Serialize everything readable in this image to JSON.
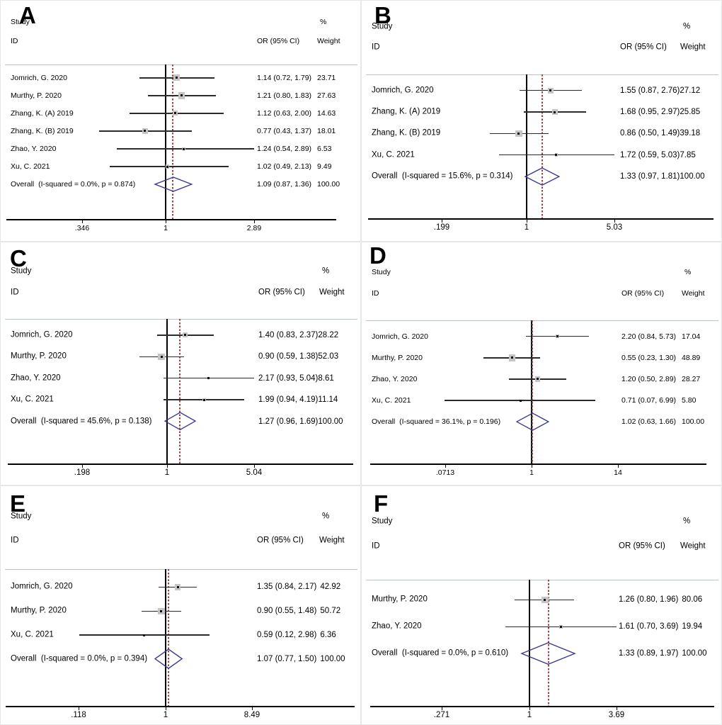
{
  "figure_colors": {
    "diamond_outline": "#3a3a8f",
    "overall_dashed_line": "#9e4242",
    "marker_square_fill": "#c5c5c5",
    "marker_dot": "#111111",
    "ci_line": "#2b2b2b",
    "axis_line": "#000000",
    "header_rule": "#bcc4c4",
    "panel_border": "#e4e8e8",
    "text": "#000000"
  },
  "chart_data": [
    {
      "type": "scatter",
      "subtype": "forest_plot",
      "panel": "A",
      "effect_measure": "OR",
      "x_scale": "log",
      "x_ticks": [
        0.346,
        1,
        2.89
      ],
      "x_tick_labels": [
        ".346",
        "1",
        "2.89"
      ],
      "null_line": 1,
      "columns": {
        "study_line1": "Study",
        "study_line2": "ID",
        "or_header": "OR (95% CI)",
        "weight_line1": "%",
        "weight_line2": "Weight"
      },
      "studies": [
        {
          "id": "Jomrich, G. 2020",
          "or": 1.14,
          "ci": [
            0.72,
            1.79
          ],
          "weight_pct": 23.71,
          "or_ci_text": "1.14 (0.72, 1.79)",
          "weight_text": "23.71"
        },
        {
          "id": "Murthy, P. 2020",
          "or": 1.21,
          "ci": [
            0.8,
            1.83
          ],
          "weight_pct": 27.63,
          "or_ci_text": "1.21 (0.80, 1.83)",
          "weight_text": "27.63"
        },
        {
          "id": "Zhang, K. (A) 2019",
          "or": 1.12,
          "ci": [
            0.63,
            2.0
          ],
          "weight_pct": 14.63,
          "or_ci_text": "1.12 (0.63, 2.00)",
          "weight_text": "14.63"
        },
        {
          "id": "Zhang, K. (B) 2019",
          "or": 0.77,
          "ci": [
            0.43,
            1.37
          ],
          "weight_pct": 18.01,
          "or_ci_text": "0.77 (0.43, 1.37)",
          "weight_text": "18.01"
        },
        {
          "id": "Zhao, Y. 2020",
          "or": 1.24,
          "ci": [
            0.54,
            2.89
          ],
          "weight_pct": 6.53,
          "or_ci_text": "1.24 (0.54, 2.89)",
          "weight_text": "6.53"
        },
        {
          "id": "Xu, C. 2021",
          "or": 1.02,
          "ci": [
            0.49,
            2.13
          ],
          "weight_pct": 9.49,
          "or_ci_text": "1.02 (0.49, 2.13)",
          "weight_text": "9.49"
        }
      ],
      "overall": {
        "label": "Overall  (I-squared = 0.0%, p = 0.874)",
        "or": 1.09,
        "ci": [
          0.87,
          1.36
        ],
        "weight_pct": 100.0,
        "or_ci_text": "1.09 (0.87, 1.36)",
        "weight_text": "100.00"
      }
    },
    {
      "type": "scatter",
      "subtype": "forest_plot",
      "panel": "B",
      "effect_measure": "OR",
      "x_scale": "log",
      "x_ticks": [
        0.199,
        1,
        5.03
      ],
      "x_tick_labels": [
        ".199",
        "1",
        "5.03"
      ],
      "null_line": 1,
      "columns": {
        "study_line1": "Study",
        "study_line2": "ID",
        "or_header": "OR (95% CI)",
        "weight_line1": "%",
        "weight_line2": "Weight"
      },
      "studies": [
        {
          "id": "Jomrich, G. 2020",
          "or": 1.55,
          "ci": [
            0.87,
            2.76
          ],
          "weight_pct": 27.12,
          "or_ci_text": "1.55 (0.87, 2.76)",
          "weight_text": "27.12"
        },
        {
          "id": "Zhang, K. (A) 2019",
          "or": 1.68,
          "ci": [
            0.95,
            2.97
          ],
          "weight_pct": 25.85,
          "or_ci_text": "1.68 (0.95, 2.97)",
          "weight_text": "25.85"
        },
        {
          "id": "Zhang, K. (B) 2019",
          "or": 0.86,
          "ci": [
            0.5,
            1.49
          ],
          "weight_pct": 39.18,
          "or_ci_text": "0.86 (0.50, 1.49)",
          "weight_text": "39.18"
        },
        {
          "id": "Xu, C. 2021",
          "or": 1.72,
          "ci": [
            0.59,
            5.03
          ],
          "weight_pct": 7.85,
          "or_ci_text": "1.72 (0.59, 5.03)",
          "weight_text": "7.85"
        }
      ],
      "overall": {
        "label": "Overall  (I-squared = 15.6%, p = 0.314)",
        "or": 1.33,
        "ci": [
          0.97,
          1.81
        ],
        "weight_pct": 100.0,
        "or_ci_text": "1.33 (0.97, 1.81)",
        "weight_text": "100.00"
      }
    },
    {
      "type": "scatter",
      "subtype": "forest_plot",
      "panel": "C",
      "effect_measure": "OR",
      "x_scale": "log",
      "x_ticks": [
        0.198,
        1,
        5.04
      ],
      "x_tick_labels": [
        ".198",
        "1",
        "5.04"
      ],
      "null_line": 1,
      "columns": {
        "study_line1": "Study",
        "study_line2": "ID",
        "or_header": "OR (95% CI)",
        "weight_line1": "%",
        "weight_line2": "Weight"
      },
      "studies": [
        {
          "id": "Jomrich, G. 2020",
          "or": 1.4,
          "ci": [
            0.83,
            2.37
          ],
          "weight_pct": 28.22,
          "or_ci_text": "1.40 (0.83, 2.37)",
          "weight_text": "28.22"
        },
        {
          "id": "Murthy, P. 2020",
          "or": 0.9,
          "ci": [
            0.59,
            1.38
          ],
          "weight_pct": 52.03,
          "or_ci_text": "0.90 (0.59, 1.38)",
          "weight_text": "52.03"
        },
        {
          "id": "Zhao, Y. 2020",
          "or": 2.17,
          "ci": [
            0.93,
            5.04
          ],
          "weight_pct": 8.61,
          "or_ci_text": "2.17 (0.93, 5.04)",
          "weight_text": "8.61"
        },
        {
          "id": "Xu, C. 2021",
          "or": 1.99,
          "ci": [
            0.94,
            4.19
          ],
          "weight_pct": 11.14,
          "or_ci_text": "1.99 (0.94, 4.19)",
          "weight_text": "11.14"
        }
      ],
      "overall": {
        "label": "Overall  (I-squared = 45.6%, p = 0.138)",
        "or": 1.27,
        "ci": [
          0.96,
          1.69
        ],
        "weight_pct": 100.0,
        "or_ci_text": "1.27 (0.96, 1.69)",
        "weight_text": "100.00"
      }
    },
    {
      "type": "scatter",
      "subtype": "forest_plot",
      "panel": "D",
      "effect_measure": "OR",
      "x_scale": "log",
      "x_ticks": [
        0.0713,
        1,
        14
      ],
      "x_tick_labels": [
        ".0713",
        "1",
        "14"
      ],
      "null_line": 1,
      "columns": {
        "study_line1": "Study",
        "study_line2": "ID",
        "or_header": "OR (95% CI)",
        "weight_line1": "%",
        "weight_line2": "Weight"
      },
      "studies": [
        {
          "id": "Jomrich, G. 2020",
          "or": 2.2,
          "ci": [
            0.84,
            5.73
          ],
          "weight_pct": 17.04,
          "or_ci_text": "2.20 (0.84, 5.73)",
          "weight_text": "17.04"
        },
        {
          "id": "Murthy, P. 2020",
          "or": 0.55,
          "ci": [
            0.23,
            1.3
          ],
          "weight_pct": 48.89,
          "or_ci_text": "0.55 (0.23, 1.30)",
          "weight_text": "48.89"
        },
        {
          "id": "Zhao, Y. 2020",
          "or": 1.2,
          "ci": [
            0.5,
            2.89
          ],
          "weight_pct": 28.27,
          "or_ci_text": "1.20 (0.50, 2.89)",
          "weight_text": "28.27"
        },
        {
          "id": "Xu, C. 2021",
          "or": 0.71,
          "ci": [
            0.07,
            6.99
          ],
          "weight_pct": 5.8,
          "or_ci_text": "0.71 (0.07, 6.99)",
          "weight_text": "5.80"
        }
      ],
      "overall": {
        "label": "Overall  (I-squared = 36.1%, p = 0.196)",
        "or": 1.02,
        "ci": [
          0.63,
          1.66
        ],
        "weight_pct": 100.0,
        "or_ci_text": "1.02 (0.63, 1.66)",
        "weight_text": "100.00"
      }
    },
    {
      "type": "scatter",
      "subtype": "forest_plot",
      "panel": "E",
      "effect_measure": "OR",
      "x_scale": "log",
      "x_ticks": [
        0.118,
        1,
        8.49
      ],
      "x_tick_labels": [
        ".118",
        "1",
        "8.49"
      ],
      "null_line": 1,
      "columns": {
        "study_line1": "Study",
        "study_line2": "ID",
        "or_header": "OR (95% CI)",
        "weight_line1": "%",
        "weight_line2": "Weight"
      },
      "studies": [
        {
          "id": "Jomrich, G. 2020",
          "or": 1.35,
          "ci": [
            0.84,
            2.17
          ],
          "weight_pct": 42.92,
          "or_ci_text": "1.35 (0.84, 2.17)",
          "weight_text": "42.92"
        },
        {
          "id": "Murthy, P. 2020",
          "or": 0.9,
          "ci": [
            0.55,
            1.48
          ],
          "weight_pct": 50.72,
          "or_ci_text": "0.90 (0.55, 1.48)",
          "weight_text": "50.72"
        },
        {
          "id": "Xu, C. 2021",
          "or": 0.59,
          "ci": [
            0.12,
            2.98
          ],
          "weight_pct": 6.36,
          "or_ci_text": "0.59 (0.12, 2.98)",
          "weight_text": "6.36"
        }
      ],
      "overall": {
        "label": "Overall  (I-squared = 0.0%, p = 0.394)",
        "or": 1.07,
        "ci": [
          0.77,
          1.5
        ],
        "weight_pct": 100.0,
        "or_ci_text": "1.07 (0.77, 1.50)",
        "weight_text": "100.00"
      }
    },
    {
      "type": "scatter",
      "subtype": "forest_plot",
      "panel": "F",
      "effect_measure": "OR",
      "x_scale": "log",
      "x_ticks": [
        0.271,
        1,
        3.69
      ],
      "x_tick_labels": [
        ".271",
        "1",
        "3.69"
      ],
      "null_line": 1,
      "columns": {
        "study_line1": "Study",
        "study_line2": "ID",
        "or_header": "OR (95% CI)",
        "weight_line1": "%",
        "weight_line2": "Weight"
      },
      "studies": [
        {
          "id": "Murthy, P. 2020",
          "or": 1.26,
          "ci": [
            0.8,
            1.96
          ],
          "weight_pct": 80.06,
          "or_ci_text": "1.26 (0.80, 1.96)",
          "weight_text": "80.06"
        },
        {
          "id": "Zhao, Y. 2020",
          "or": 1.61,
          "ci": [
            0.7,
            3.69
          ],
          "weight_pct": 19.94,
          "or_ci_text": "1.61 (0.70, 3.69)",
          "weight_text": "19.94"
        }
      ],
      "overall": {
        "label": "Overall  (I-squared = 0.0%, p = 0.610)",
        "or": 1.33,
        "ci": [
          0.89,
          1.97
        ],
        "weight_pct": 100.0,
        "or_ci_text": "1.33 (0.89, 1.97)",
        "weight_text": "100.00"
      }
    }
  ]
}
